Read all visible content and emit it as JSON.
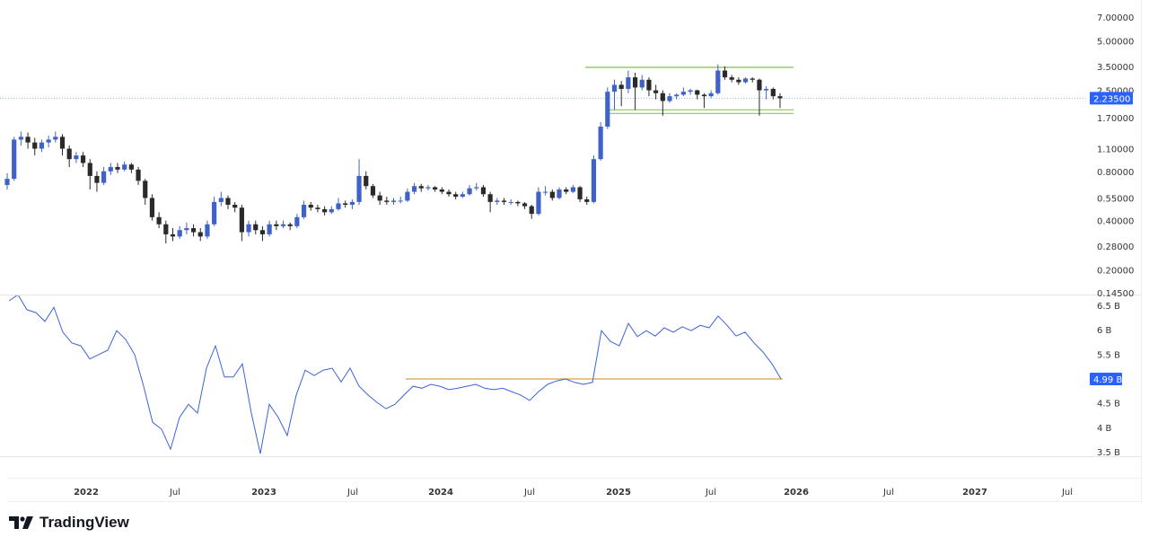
{
  "chart_data": [
    {
      "type": "candlestick",
      "scale": "log",
      "y_ticks": [
        "7.00000",
        "5.00000",
        "3.50000",
        "2.50000",
        "1.70000",
        "1.10000",
        "0.80000",
        "0.55000",
        "0.40000",
        "0.28000",
        "0.20000",
        "0.14500"
      ],
      "ylim": [
        0.145,
        7.0
      ],
      "last_price": 2.235,
      "last_price_label": "2.23500",
      "colors": {
        "up": "#3f62c6",
        "down": "#2a2a2a",
        "last_price": "#2962ff",
        "range_lines": "#9ccc65"
      },
      "range_levels": [
        3.45,
        1.85
      ],
      "candles_ohlc": [
        [
          0.66,
          0.78,
          0.62,
          0.72
        ],
        [
          0.72,
          1.3,
          0.7,
          1.25
        ],
        [
          1.25,
          1.4,
          1.15,
          1.3
        ],
        [
          1.3,
          1.38,
          1.1,
          1.2
        ],
        [
          1.2,
          1.28,
          1.0,
          1.1
        ],
        [
          1.1,
          1.25,
          1.05,
          1.2
        ],
        [
          1.2,
          1.32,
          1.12,
          1.25
        ],
        [
          1.25,
          1.4,
          1.2,
          1.3
        ],
        [
          1.3,
          1.35,
          1.0,
          1.1
        ],
        [
          1.1,
          1.15,
          0.85,
          0.95
        ],
        [
          0.95,
          1.05,
          0.9,
          1.0
        ],
        [
          1.0,
          1.05,
          0.85,
          0.9
        ],
        [
          0.9,
          0.95,
          0.62,
          0.75
        ],
        [
          0.75,
          0.8,
          0.6,
          0.68
        ],
        [
          0.68,
          0.85,
          0.66,
          0.8
        ],
        [
          0.8,
          0.9,
          0.76,
          0.85
        ],
        [
          0.85,
          0.9,
          0.78,
          0.82
        ],
        [
          0.82,
          0.92,
          0.8,
          0.88
        ],
        [
          0.88,
          0.9,
          0.78,
          0.82
        ],
        [
          0.82,
          0.85,
          0.66,
          0.7
        ],
        [
          0.7,
          0.72,
          0.5,
          0.55
        ],
        [
          0.55,
          0.58,
          0.4,
          0.42
        ],
        [
          0.42,
          0.45,
          0.36,
          0.38
        ],
        [
          0.38,
          0.4,
          0.29,
          0.33
        ],
        [
          0.33,
          0.36,
          0.3,
          0.32
        ],
        [
          0.32,
          0.37,
          0.31,
          0.35
        ],
        [
          0.35,
          0.39,
          0.33,
          0.36
        ],
        [
          0.36,
          0.38,
          0.32,
          0.34
        ],
        [
          0.34,
          0.36,
          0.3,
          0.32
        ],
        [
          0.32,
          0.4,
          0.31,
          0.38
        ],
        [
          0.38,
          0.56,
          0.37,
          0.52
        ],
        [
          0.52,
          0.6,
          0.49,
          0.55
        ],
        [
          0.55,
          0.57,
          0.47,
          0.5
        ],
        [
          0.5,
          0.52,
          0.45,
          0.48
        ],
        [
          0.48,
          0.5,
          0.3,
          0.34
        ],
        [
          0.34,
          0.4,
          0.32,
          0.38
        ],
        [
          0.38,
          0.4,
          0.33,
          0.35
        ],
        [
          0.35,
          0.37,
          0.3,
          0.33
        ],
        [
          0.33,
          0.4,
          0.32,
          0.38
        ],
        [
          0.38,
          0.4,
          0.35,
          0.37
        ],
        [
          0.37,
          0.4,
          0.36,
          0.38
        ],
        [
          0.38,
          0.39,
          0.35,
          0.37
        ],
        [
          0.37,
          0.44,
          0.36,
          0.42
        ],
        [
          0.42,
          0.53,
          0.41,
          0.5
        ],
        [
          0.5,
          0.52,
          0.46,
          0.48
        ],
        [
          0.48,
          0.5,
          0.45,
          0.47
        ],
        [
          0.47,
          0.49,
          0.43,
          0.45
        ],
        [
          0.45,
          0.49,
          0.44,
          0.47
        ],
        [
          0.47,
          0.55,
          0.46,
          0.51
        ],
        [
          0.51,
          0.53,
          0.48,
          0.5
        ],
        [
          0.5,
          0.54,
          0.47,
          0.52
        ],
        [
          0.52,
          0.95,
          0.5,
          0.75
        ],
        [
          0.75,
          0.8,
          0.62,
          0.65
        ],
        [
          0.65,
          0.67,
          0.55,
          0.57
        ],
        [
          0.57,
          0.6,
          0.5,
          0.53
        ],
        [
          0.53,
          0.56,
          0.5,
          0.52
        ],
        [
          0.52,
          0.55,
          0.5,
          0.53
        ],
        [
          0.53,
          0.56,
          0.51,
          0.53
        ],
        [
          0.53,
          0.63,
          0.52,
          0.6
        ],
        [
          0.6,
          0.68,
          0.58,
          0.65
        ],
        [
          0.65,
          0.67,
          0.6,
          0.63
        ],
        [
          0.63,
          0.66,
          0.61,
          0.64
        ],
        [
          0.64,
          0.65,
          0.6,
          0.62
        ],
        [
          0.62,
          0.64,
          0.58,
          0.6
        ],
        [
          0.6,
          0.62,
          0.56,
          0.58
        ],
        [
          0.58,
          0.6,
          0.54,
          0.56
        ],
        [
          0.56,
          0.6,
          0.55,
          0.58
        ],
        [
          0.58,
          0.66,
          0.57,
          0.63
        ],
        [
          0.63,
          0.68,
          0.61,
          0.64
        ],
        [
          0.64,
          0.66,
          0.56,
          0.58
        ],
        [
          0.58,
          0.6,
          0.45,
          0.52
        ],
        [
          0.52,
          0.55,
          0.5,
          0.53
        ],
        [
          0.53,
          0.55,
          0.5,
          0.52
        ],
        [
          0.52,
          0.54,
          0.5,
          0.52
        ],
        [
          0.52,
          0.53,
          0.49,
          0.51
        ],
        [
          0.51,
          0.52,
          0.47,
          0.49
        ],
        [
          0.49,
          0.5,
          0.41,
          0.44
        ],
        [
          0.44,
          0.64,
          0.43,
          0.6
        ],
        [
          0.6,
          0.65,
          0.57,
          0.6
        ],
        [
          0.6,
          0.62,
          0.53,
          0.55
        ],
        [
          0.55,
          0.64,
          0.54,
          0.62
        ],
        [
          0.62,
          0.64,
          0.58,
          0.6
        ],
        [
          0.6,
          0.66,
          0.59,
          0.64
        ],
        [
          0.64,
          0.65,
          0.52,
          0.54
        ],
        [
          0.54,
          0.56,
          0.5,
          0.52
        ],
        [
          0.52,
          1.0,
          0.51,
          0.95
        ],
        [
          0.95,
          1.6,
          0.93,
          1.5
        ],
        [
          1.5,
          2.6,
          1.45,
          2.45
        ],
        [
          2.45,
          2.9,
          1.9,
          2.7
        ],
        [
          2.7,
          2.85,
          2.0,
          2.55
        ],
        [
          2.55,
          3.3,
          2.4,
          3.0
        ],
        [
          3.0,
          3.2,
          1.9,
          2.6
        ],
        [
          2.6,
          3.1,
          2.5,
          2.9
        ],
        [
          2.9,
          3.0,
          2.3,
          2.5
        ],
        [
          2.5,
          2.7,
          2.2,
          2.4
        ],
        [
          2.4,
          2.5,
          1.75,
          2.15
        ],
        [
          2.15,
          2.4,
          2.1,
          2.3
        ],
        [
          2.3,
          2.4,
          2.2,
          2.35
        ],
        [
          2.35,
          2.6,
          2.3,
          2.45
        ],
        [
          2.45,
          2.55,
          2.35,
          2.5
        ],
        [
          2.5,
          2.52,
          2.2,
          2.35
        ],
        [
          2.35,
          2.4,
          1.95,
          2.3
        ],
        [
          2.3,
          2.5,
          2.25,
          2.4
        ],
        [
          2.4,
          3.6,
          2.35,
          3.3
        ],
        [
          3.3,
          3.5,
          2.9,
          3.0
        ],
        [
          3.0,
          3.1,
          2.8,
          2.9
        ],
        [
          2.9,
          3.0,
          2.7,
          2.8
        ],
        [
          2.8,
          3.0,
          2.75,
          2.95
        ],
        [
          2.95,
          3.0,
          2.8,
          2.9
        ],
        [
          2.9,
          2.95,
          1.75,
          2.5
        ],
        [
          2.5,
          2.65,
          2.2,
          2.55
        ],
        [
          2.55,
          2.6,
          2.2,
          2.3
        ],
        [
          2.3,
          2.4,
          1.95,
          2.235
        ]
      ]
    },
    {
      "type": "line",
      "y_ticks": [
        "6.5 B",
        "6 B",
        "5.5 B",
        "4.5 B",
        "4 B",
        "3.5 B"
      ],
      "ylim_billions": [
        3.5,
        6.5
      ],
      "last_value_label": "4.99 B",
      "last_value": 4.99,
      "horizontal_level": 4.99,
      "colors": {
        "line": "#3d63d6",
        "level": "#e0b060",
        "last_value": "#2962ff"
      },
      "values_billions": [
        6.59,
        6.72,
        6.41,
        6.35,
        6.17,
        6.46,
        5.95,
        5.73,
        5.67,
        5.4,
        5.49,
        5.58,
        5.98,
        5.8,
        5.49,
        4.84,
        4.1,
        3.96,
        3.55,
        4.2,
        4.47,
        4.29,
        5.21,
        5.67,
        5.03,
        5.03,
        5.3,
        4.29,
        3.46,
        4.47,
        4.2,
        3.83,
        4.66,
        5.17,
        5.06,
        5.17,
        5.21,
        4.93,
        5.21,
        4.84,
        4.66,
        4.51,
        4.38,
        4.47,
        4.66,
        4.84,
        4.8,
        4.88,
        4.84,
        4.77,
        4.8,
        4.84,
        4.88,
        4.8,
        4.77,
        4.8,
        4.73,
        4.66,
        4.55,
        4.73,
        4.88,
        4.95,
        4.99,
        4.92,
        4.88,
        4.92,
        5.98,
        5.76,
        5.67,
        6.13,
        5.86,
        5.98,
        5.87,
        6.04,
        5.95,
        6.06,
        5.98,
        6.09,
        6.04,
        6.28,
        6.09,
        5.87,
        5.95,
        5.73,
        5.54,
        5.3,
        4.99
      ]
    }
  ],
  "time_axis": [
    {
      "label": "2022",
      "year": true
    },
    {
      "label": "Jul",
      "year": false
    },
    {
      "label": "2023",
      "year": true
    },
    {
      "label": "Jul",
      "year": false
    },
    {
      "label": "2024",
      "year": true
    },
    {
      "label": "Jul",
      "year": false
    },
    {
      "label": "2025",
      "year": true
    },
    {
      "label": "Jul",
      "year": false
    },
    {
      "label": "2026",
      "year": true
    },
    {
      "label": "Jul",
      "year": false
    },
    {
      "label": "2027",
      "year": true
    },
    {
      "label": "Jul",
      "year": false
    }
  ],
  "brand": {
    "name": "TradingView"
  }
}
